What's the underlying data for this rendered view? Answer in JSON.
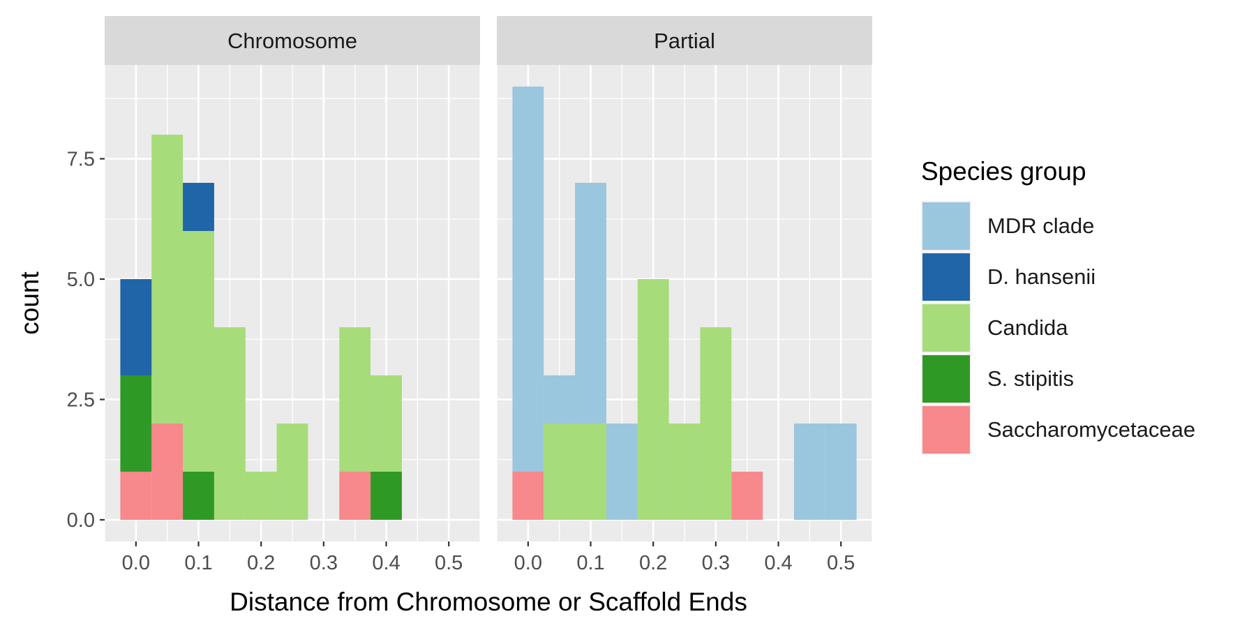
{
  "chart_data": {
    "type": "bar",
    "stacked": true,
    "xlabel": "Distance from Chromosome or Scaffold Ends",
    "ylabel": "count",
    "xlim": [
      -0.05,
      0.55
    ],
    "ylim": [
      -0.45,
      9.45
    ],
    "xticks": [
      0.0,
      0.1,
      0.2,
      0.3,
      0.4,
      0.5
    ],
    "xtick_labels": [
      "0.0",
      "0.1",
      "0.2",
      "0.3",
      "0.4",
      "0.5"
    ],
    "yticks": [
      0,
      2.5,
      5,
      7.5
    ],
    "ytick_labels": [
      "0.0",
      "2.5",
      "5.0",
      "7.5"
    ],
    "bin_width": 0.05,
    "bin_centers": [
      0.0,
      0.05,
      0.1,
      0.15,
      0.2,
      0.25,
      0.3,
      0.35,
      0.4,
      0.45,
      0.5
    ],
    "grid": true,
    "legend": {
      "title": "Species group",
      "position": "right",
      "entries": [
        {
          "name": "MDR clade",
          "color": "#9ac6de"
        },
        {
          "name": "D. hansenii",
          "color": "#1f65a8"
        },
        {
          "name": "Candida",
          "color": "#a6dc79"
        },
        {
          "name": "S. stipitis",
          "color": "#2f9926"
        },
        {
          "name": "Saccharomycetaceae",
          "color": "#f7888b"
        }
      ]
    },
    "panels": [
      {
        "title": "Chromosome",
        "series": [
          {
            "name": "Saccharomycetaceae",
            "values": [
              1,
              2,
              0,
              0,
              0,
              0,
              0,
              1,
              0,
              0,
              0
            ]
          },
          {
            "name": "S. stipitis",
            "values": [
              2,
              0,
              1,
              0,
              0,
              0,
              0,
              0,
              1,
              0,
              0
            ]
          },
          {
            "name": "Candida",
            "values": [
              0,
              6,
              5,
              4,
              1,
              2,
              0,
              3,
              2,
              0,
              0
            ]
          },
          {
            "name": "D. hansenii",
            "values": [
              2,
              0,
              1,
              0,
              0,
              0,
              0,
              0,
              0,
              0,
              0
            ]
          },
          {
            "name": "MDR clade",
            "values": [
              0,
              0,
              0,
              0,
              0,
              0,
              0,
              0,
              0,
              0,
              0
            ]
          }
        ]
      },
      {
        "title": "Partial",
        "series": [
          {
            "name": "Saccharomycetaceae",
            "values": [
              1,
              0,
              0,
              0,
              0,
              0,
              0,
              1,
              0,
              0,
              0
            ]
          },
          {
            "name": "S. stipitis",
            "values": [
              0,
              0,
              0,
              0,
              0,
              0,
              0,
              0,
              0,
              0,
              0
            ]
          },
          {
            "name": "Candida",
            "values": [
              0,
              2,
              2,
              0,
              5,
              2,
              4,
              0,
              0,
              0,
              0
            ]
          },
          {
            "name": "D. hansenii",
            "values": [
              0,
              0,
              0,
              0,
              0,
              0,
              0,
              0,
              0,
              0,
              0
            ]
          },
          {
            "name": "MDR clade",
            "values": [
              8,
              1,
              5,
              2,
              0,
              0,
              0,
              0,
              0,
              2,
              2
            ]
          }
        ]
      }
    ]
  }
}
